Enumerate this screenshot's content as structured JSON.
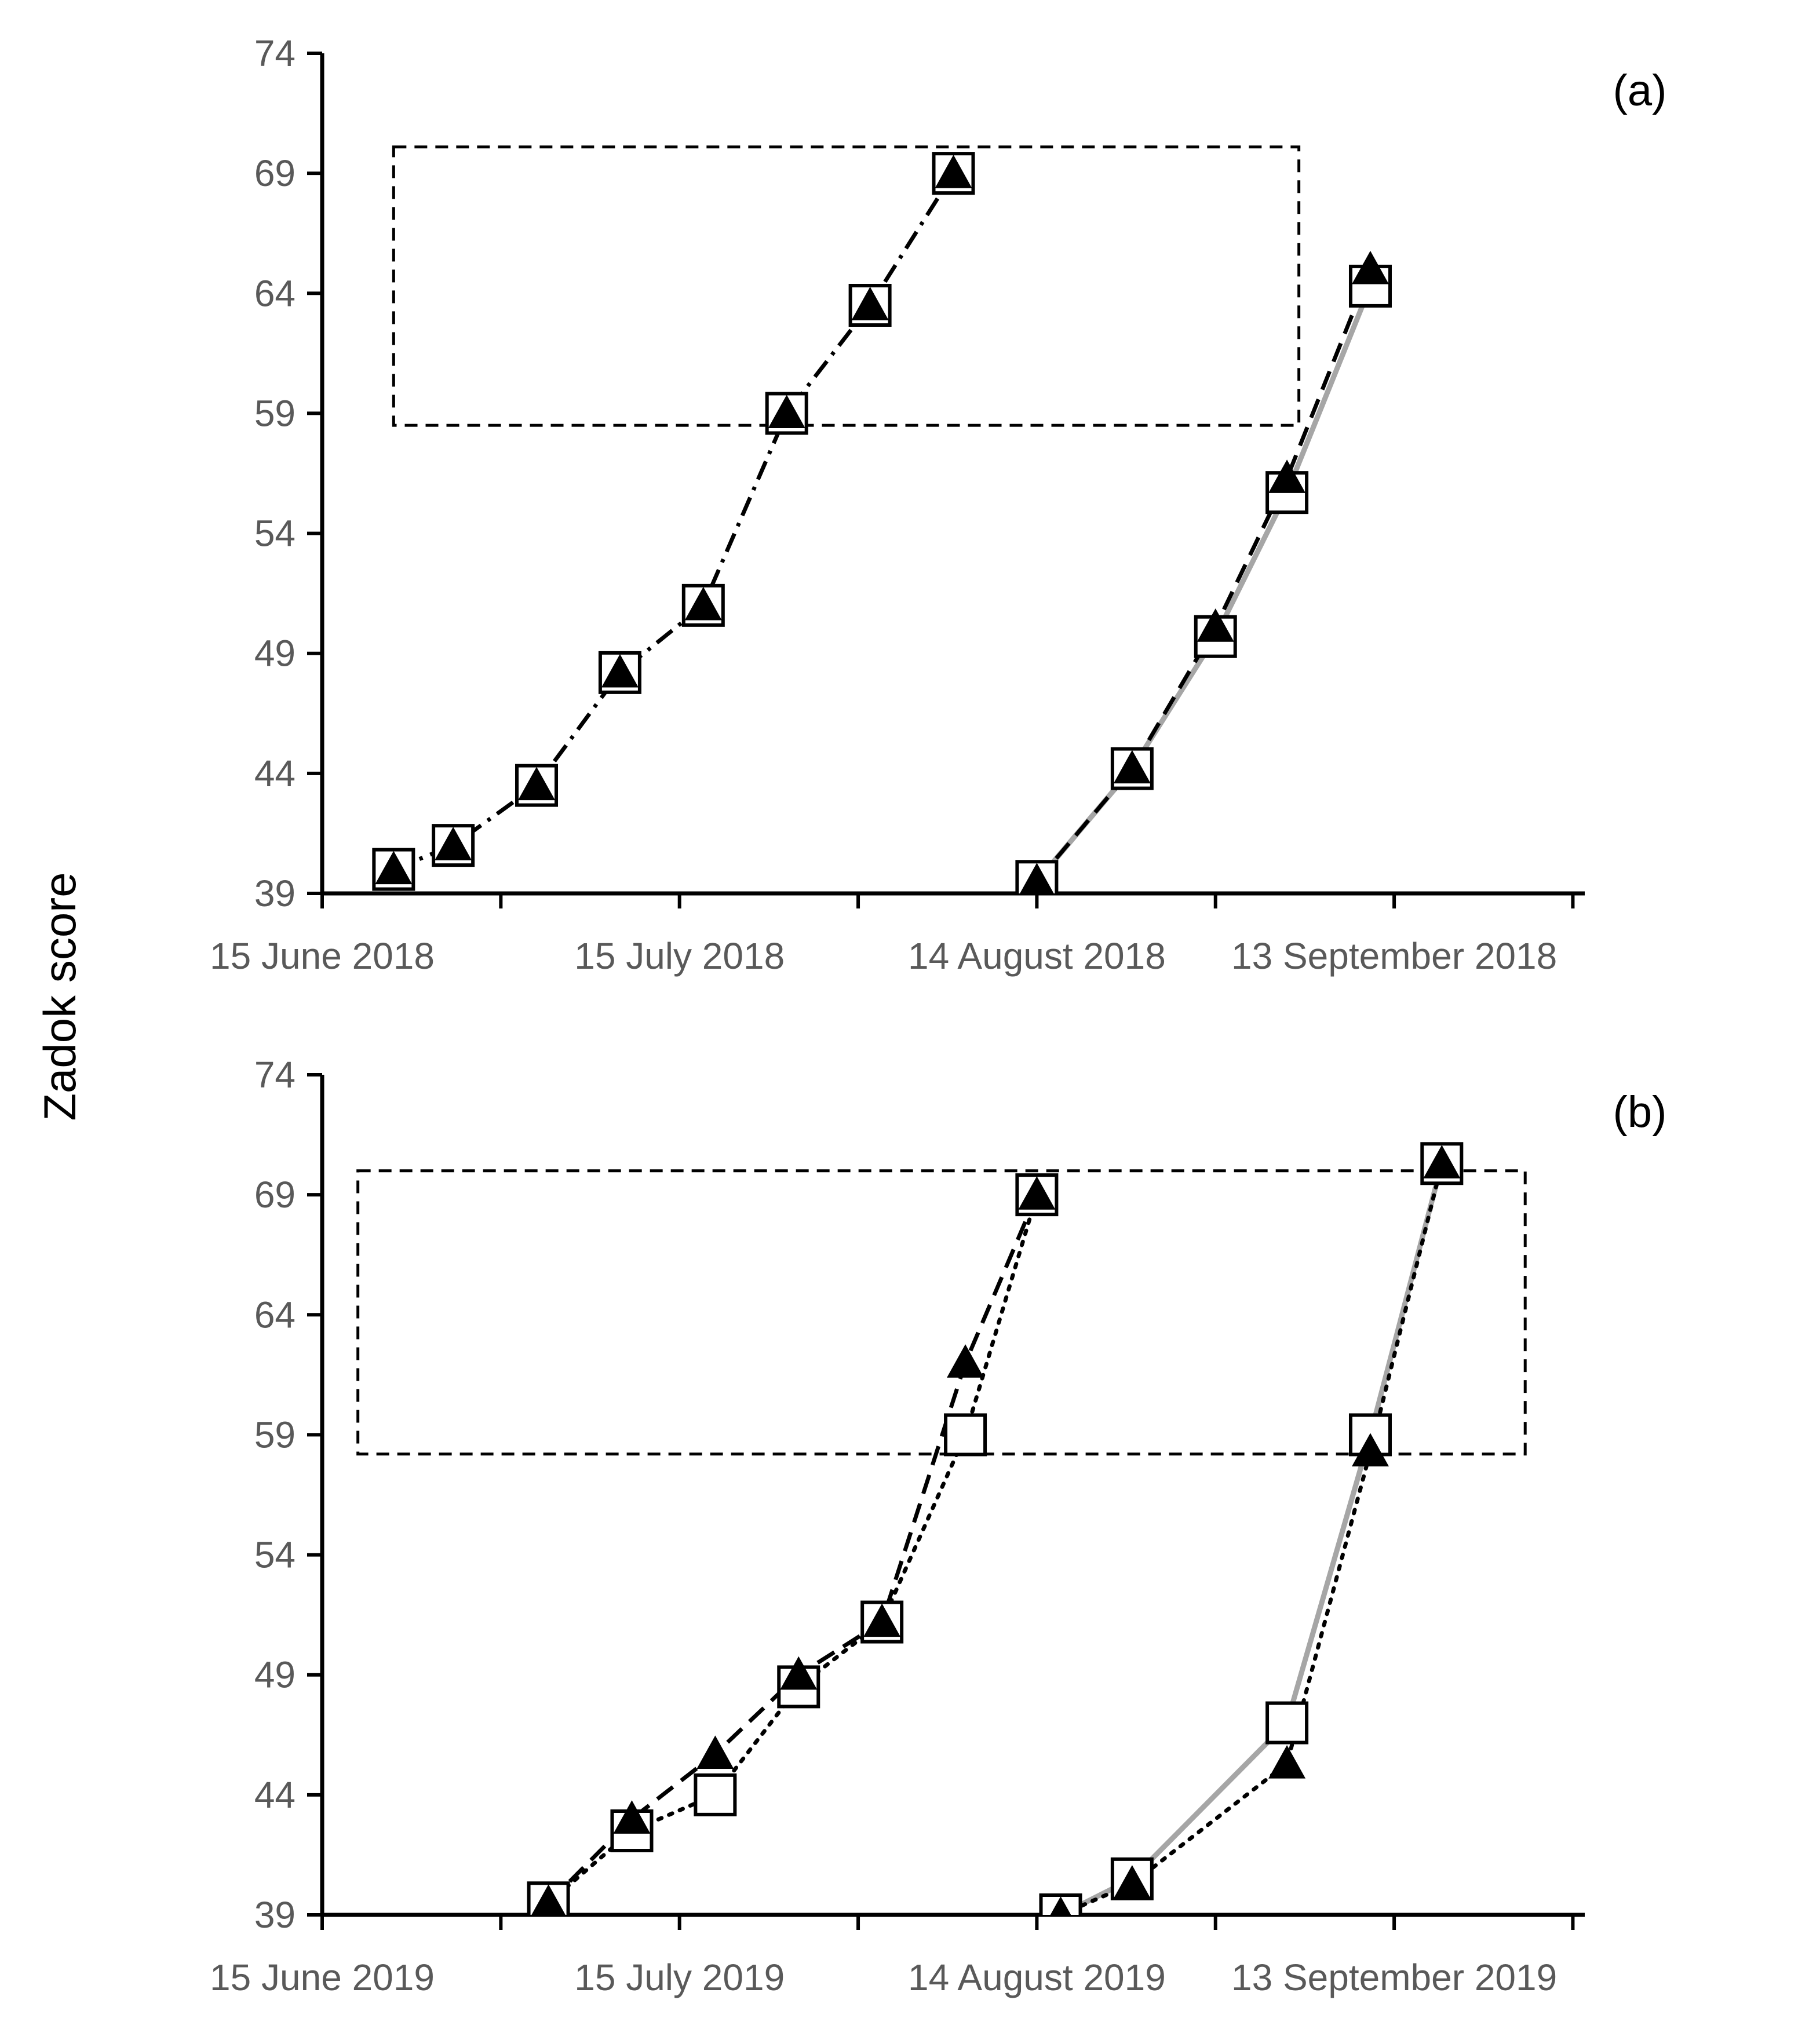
{
  "y_title": "Zadok score",
  "chart_data": [
    {
      "type": "line",
      "panel_label": "(a)",
      "ylabel": "Zadok score",
      "xlabel": "",
      "ylim": [
        39,
        74
      ],
      "yticks": [
        39,
        44,
        49,
        54,
        59,
        64,
        69,
        74
      ],
      "x_axis": {
        "type": "date",
        "range": [
          "2018-06-15",
          "2018-09-29"
        ]
      },
      "xticks": [
        "2018-06-15",
        "2018-06-30",
        "2018-07-15",
        "2018-07-30",
        "2018-08-14",
        "2018-08-29",
        "2018-09-13",
        "2018-09-28"
      ],
      "xtick_labels": [
        {
          "date": "2018-06-15",
          "label": "15 June 2018"
        },
        {
          "date": "2018-07-15",
          "label": "15 July 2018"
        },
        {
          "date": "2018-08-14",
          "label": "14 August 2018"
        },
        {
          "date": "2018-09-13",
          "label": "13 September 2018"
        }
      ],
      "grid": false,
      "highlight_box": {
        "x": [
          "2018-06-21",
          "2018-09-05"
        ],
        "y": [
          58.5,
          70.1
        ]
      },
      "series": [
        {
          "x": [
            "2018-06-21",
            "2018-06-26",
            "2018-07-03",
            "2018-07-10",
            "2018-07-17",
            "2018-07-24",
            "2018-07-31",
            "2018-08-07"
          ],
          "y": [
            40,
            41,
            43.5,
            48.2,
            51,
            59,
            63.5,
            69
          ],
          "style": "dashdot",
          "color": "#000000",
          "marker": "triangle"
        },
        {
          "x": [
            "2018-06-21",
            "2018-06-26",
            "2018-07-03",
            "2018-07-10",
            "2018-07-17",
            "2018-07-24",
            "2018-07-31",
            "2018-08-07"
          ],
          "y": [
            40,
            41,
            43.5,
            48.2,
            51,
            59,
            63.5,
            69
          ],
          "style": "none",
          "color": "#000000",
          "marker": "square"
        },
        {
          "x": [
            "2018-08-14",
            "2018-08-22",
            "2018-08-29",
            "2018-09-04",
            "2018-09-11"
          ],
          "y": [
            39.5,
            44.2,
            49.7,
            55.7,
            64.3
          ],
          "style": "solid",
          "color": "#a6a6a6",
          "marker": "square"
        },
        {
          "x": [
            "2018-08-14",
            "2018-08-22",
            "2018-08-29",
            "2018-09-04",
            "2018-09-11"
          ],
          "y": [
            39.5,
            44.2,
            50.1,
            56.3,
            65
          ],
          "style": "dashed",
          "color": "#000000",
          "marker": "triangle"
        }
      ]
    },
    {
      "type": "line",
      "panel_label": "(b)",
      "ylabel": "Zadok score",
      "xlabel": "",
      "ylim": [
        39,
        74
      ],
      "yticks": [
        39,
        44,
        49,
        54,
        59,
        64,
        69,
        74
      ],
      "x_axis": {
        "type": "date",
        "range": [
          "2019-06-15",
          "2019-09-29"
        ]
      },
      "xticks": [
        "2019-06-15",
        "2019-06-30",
        "2019-07-15",
        "2019-07-30",
        "2019-08-14",
        "2019-08-29",
        "2019-09-13",
        "2019-09-28"
      ],
      "xtick_labels": [
        {
          "date": "2019-06-15",
          "label": "15 June 2019"
        },
        {
          "date": "2019-07-15",
          "label": "15 July 2019"
        },
        {
          "date": "2019-08-14",
          "label": "14 August 2019"
        },
        {
          "date": "2019-09-13",
          "label": "13 September 2019"
        }
      ],
      "grid": false,
      "highlight_box": {
        "x": [
          "2019-06-18",
          "2019-09-24"
        ],
        "y": [
          58.2,
          70
        ]
      },
      "series": [
        {
          "x": [
            "2019-07-04",
            "2019-07-11",
            "2019-07-18",
            "2019-07-25",
            "2019-08-01",
            "2019-08-08",
            "2019-08-14"
          ],
          "y": [
            39.5,
            42.5,
            44,
            48.5,
            51.2,
            59,
            69
          ],
          "style": "dotted",
          "color": "#000000",
          "marker": "square"
        },
        {
          "x": [
            "2019-07-04",
            "2019-07-11",
            "2019-07-18",
            "2019-07-25",
            "2019-08-01",
            "2019-08-08",
            "2019-08-14"
          ],
          "y": [
            39.5,
            43,
            45.7,
            49,
            51.2,
            62,
            69
          ],
          "style": "dashed",
          "color": "#000000",
          "marker": "triangle"
        },
        {
          "x": [
            "2019-08-16",
            "2019-08-22",
            "2019-09-04",
            "2019-09-11",
            "2019-09-17"
          ],
          "y": [
            39,
            40.5,
            47,
            59,
            70.3
          ],
          "style": "solid",
          "color": "#a6a6a6",
          "marker": "square"
        },
        {
          "x": [
            "2019-08-16",
            "2019-08-22",
            "2019-09-04",
            "2019-09-11",
            "2019-09-17"
          ],
          "y": [
            39,
            40.3,
            45.3,
            58.3,
            70.3
          ],
          "style": "dotted",
          "color": "#000000",
          "marker": "triangle"
        }
      ]
    }
  ]
}
